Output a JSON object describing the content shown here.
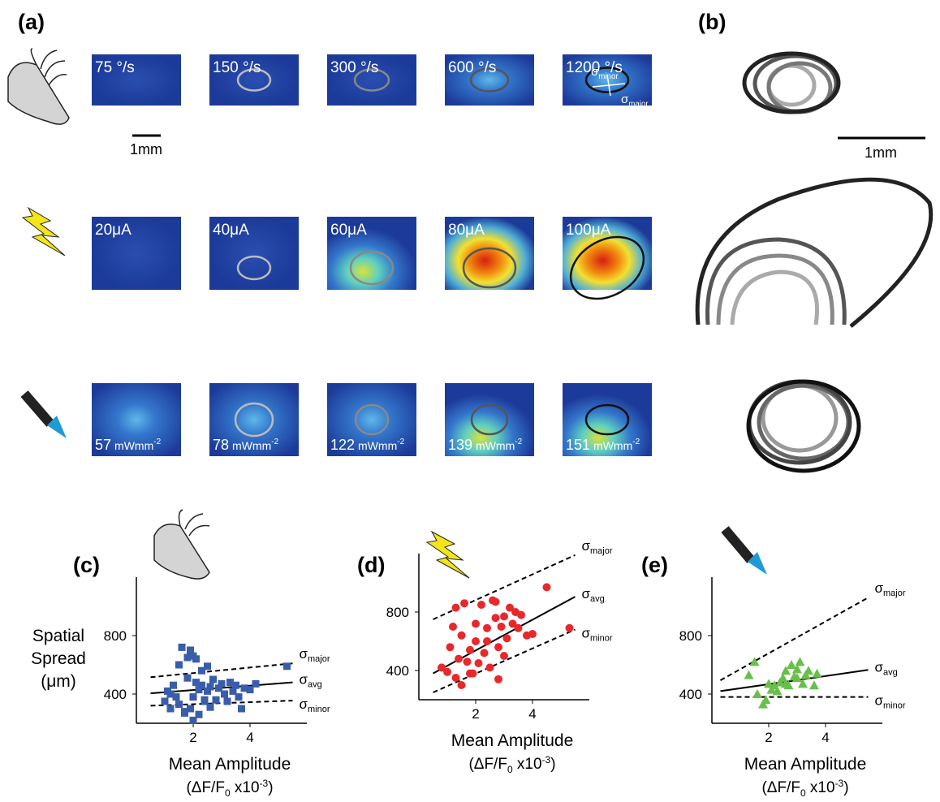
{
  "panel_labels": {
    "a": "(a)",
    "b": "(b)",
    "c": "(c)",
    "d": "(d)",
    "e": "(e)"
  },
  "panel_a": {
    "rows": [
      {
        "labels": [
          "75 °/s",
          "150 °/s",
          "300 °/s",
          "600 °/s",
          "1200 °/s"
        ]
      },
      {
        "labels": [
          "20μA",
          "40μA",
          "60μA",
          "80μA",
          "100μA"
        ]
      },
      {
        "labels": [
          {
            "number": "57",
            "unit": "mWmm",
            "exponent": "-2"
          },
          {
            "number": "78",
            "unit": "mWmm",
            "exponent": "-2"
          },
          {
            "number": "122",
            "unit": "mWmm",
            "exponent": "-2"
          },
          {
            "number": "139",
            "unit": "mWmm",
            "exponent": "-2"
          },
          {
            "number": "151",
            "unit": "mWmm",
            "exponent": "-2"
          }
        ]
      }
    ],
    "scale_bar": "1mm",
    "sigma_labels": {
      "symbol": "σ",
      "minor": "minor",
      "major": "major"
    }
  },
  "panel_b": {
    "scale_bar": "1mm"
  },
  "chart_data": [
    {
      "type": "scatter",
      "marker": "square",
      "color": "#3a5dab",
      "y_label": [
        "Spatial",
        "Spread",
        "(μm)"
      ],
      "x_label": {
        "line1": "Mean Amplitude",
        "prefix": "(ΔF/F",
        "sub": "0",
        "mid": " x10",
        "sup": "-3",
        "suffix": ")"
      },
      "xlim": [
        0,
        6
      ],
      "xticks": [
        2,
        4
      ],
      "ylim": [
        200,
        1200
      ],
      "yticks": [
        400,
        800
      ],
      "x": [
        1.0,
        1.1,
        1.2,
        1.3,
        1.4,
        1.5,
        1.5,
        1.6,
        1.7,
        1.8,
        1.8,
        1.9,
        2.0,
        2.0,
        2.1,
        2.2,
        2.2,
        2.3,
        2.4,
        2.5,
        2.5,
        2.6,
        2.7,
        2.8,
        2.9,
        3.0,
        3.1,
        3.2,
        3.3,
        3.4,
        3.5,
        3.6,
        3.7,
        3.8,
        4.0,
        4.2,
        1.7,
        2.0,
        2.3,
        2.6,
        1.2,
        5.3,
        1.9,
        2.4,
        2.1
      ],
      "y": [
        350,
        420,
        300,
        460,
        380,
        600,
        330,
        720,
        280,
        510,
        650,
        300,
        660,
        380,
        640,
        430,
        260,
        460,
        350,
        590,
        420,
        310,
        500,
        360,
        440,
        470,
        400,
        350,
        480,
        420,
        460,
        380,
        300,
        440,
        430,
        470,
        270,
        220,
        560,
        450,
        400,
        590,
        700,
        360,
        480
      ],
      "fits": [
        {
          "name": "σ",
          "subscript": "major",
          "dashed": true,
          "x": [
            0.5,
            5.5
          ],
          "y": [
            515,
            610
          ]
        },
        {
          "name": "σ",
          "subscript": "avg",
          "dashed": false,
          "x": [
            0.5,
            5.5
          ],
          "y": [
            405,
            480
          ]
        },
        {
          "name": "σ",
          "subscript": "minor",
          "dashed": true,
          "x": [
            0.5,
            5.5
          ],
          "y": [
            320,
            355
          ]
        }
      ]
    },
    {
      "type": "scatter",
      "marker": "circle",
      "color": "#e8282b",
      "x_label": {
        "line1": "Mean Amplitude",
        "prefix": "(ΔF/F",
        "sub": "0",
        "mid": " x10",
        "sup": "-3",
        "suffix": ")"
      },
      "xlim": [
        0,
        6
      ],
      "xticks": [
        2,
        4
      ],
      "ylim": [
        200,
        1200
      ],
      "yticks": [
        400,
        800
      ],
      "x": [
        0.8,
        1.0,
        1.1,
        1.2,
        1.3,
        1.4,
        1.5,
        1.5,
        1.6,
        1.7,
        1.8,
        1.9,
        2.0,
        2.0,
        2.1,
        2.2,
        2.3,
        2.4,
        2.5,
        2.6,
        2.7,
        2.8,
        2.8,
        2.9,
        3.0,
        3.1,
        3.2,
        3.3,
        3.4,
        3.5,
        3.6,
        3.8,
        4.0,
        4.5,
        5.3,
        1.3,
        1.8,
        2.4,
        2.7,
        3.0
      ],
      "y": [
        420,
        390,
        560,
        700,
        350,
        480,
        300,
        640,
        860,
        460,
        540,
        380,
        720,
        600,
        450,
        850,
        520,
        690,
        420,
        880,
        760,
        560,
        340,
        700,
        770,
        620,
        830,
        720,
        800,
        690,
        780,
        640,
        650,
        970,
        690,
        830,
        380,
        600,
        870,
        500
      ],
      "fits": [
        {
          "name": "σ",
          "subscript": "major",
          "dashed": true,
          "x": [
            0.5,
            5.5
          ],
          "y": [
            750,
            1190
          ]
        },
        {
          "name": "σ",
          "subscript": "avg",
          "dashed": false,
          "x": [
            0.5,
            5.5
          ],
          "y": [
            380,
            905
          ]
        },
        {
          "name": "σ",
          "subscript": "minor",
          "dashed": true,
          "x": [
            0.5,
            5.5
          ],
          "y": [
            250,
            680
          ]
        }
      ]
    },
    {
      "type": "scatter",
      "marker": "triangle",
      "color": "#6abf4b",
      "x_label": {
        "line1": "Mean Amplitude",
        "prefix": "(ΔF/F",
        "sub": "0",
        "mid": " x10",
        "sup": "-3",
        "suffix": ")"
      },
      "xlim": [
        0,
        6
      ],
      "xticks": [
        2,
        4
      ],
      "ylim": [
        200,
        1200
      ],
      "yticks": [
        400,
        800
      ],
      "x": [
        1.3,
        1.5,
        1.6,
        1.8,
        1.9,
        2.0,
        2.1,
        2.2,
        2.4,
        2.5,
        2.6,
        2.7,
        2.8,
        2.9,
        3.0,
        3.1,
        3.2,
        3.3,
        3.4,
        3.6,
        3.7,
        2.6,
        2.3,
        3.0
      ],
      "y": [
        530,
        620,
        400,
        330,
        360,
        470,
        430,
        460,
        480,
        510,
        560,
        460,
        600,
        520,
        570,
        620,
        470,
        530,
        560,
        460,
        540,
        470,
        420,
        510
      ],
      "fits": [
        {
          "name": "σ",
          "subscript": "major",
          "dashed": true,
          "x": [
            0.3,
            5.5
          ],
          "y": [
            494,
            1060
          ]
        },
        {
          "name": "σ",
          "subscript": "avg",
          "dashed": false,
          "x": [
            0.3,
            5.5
          ],
          "y": [
            420,
            565
          ]
        },
        {
          "name": "σ",
          "subscript": "minor",
          "dashed": true,
          "x": [
            0.3,
            5.5
          ],
          "y": [
            380,
            380
          ]
        }
      ]
    }
  ]
}
